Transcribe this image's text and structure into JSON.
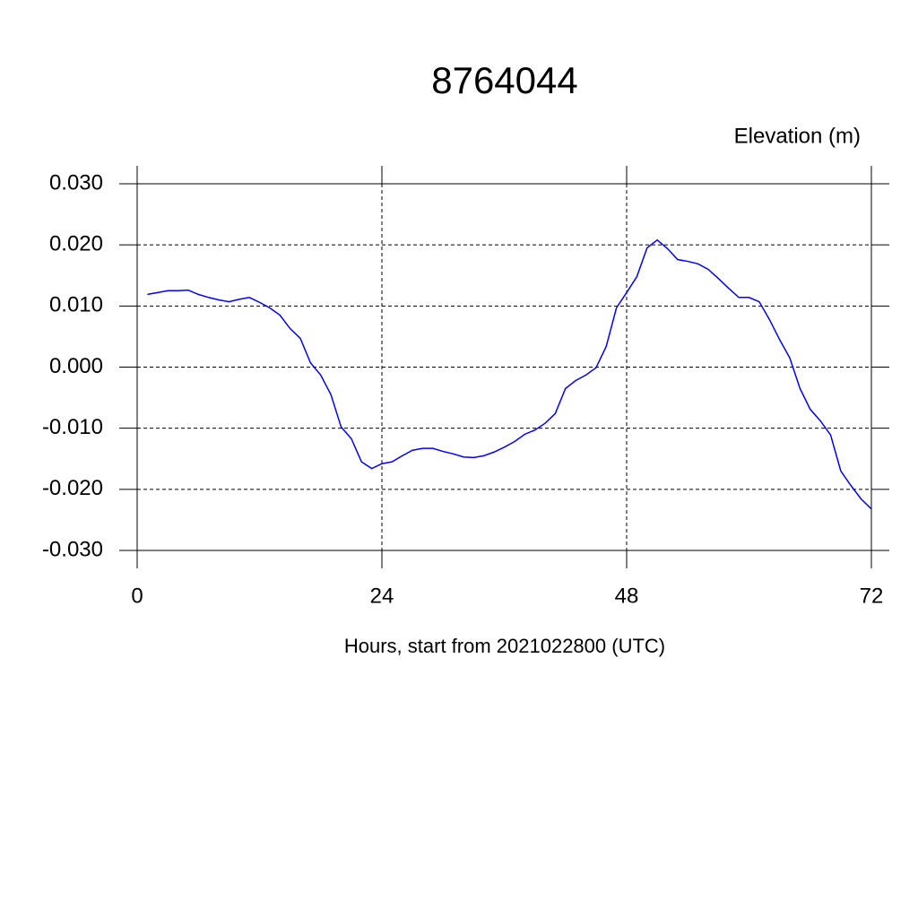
{
  "chart_data": {
    "type": "line",
    "title": "8764044",
    "subtitle": "Elevation (m)",
    "x_label": "Hours, start from 2021022800 (UTC)",
    "x": [
      1,
      2,
      3,
      4,
      5,
      6,
      7,
      8,
      9,
      10,
      11,
      12,
      13,
      14,
      15,
      16,
      17,
      18,
      19,
      20,
      21,
      22,
      23,
      24,
      25,
      26,
      27,
      28,
      29,
      30,
      31,
      32,
      33,
      34,
      35,
      36,
      37,
      38,
      39,
      40,
      41,
      42,
      43,
      44,
      45,
      46,
      47,
      48,
      49,
      50,
      51,
      52,
      53,
      54,
      55,
      56,
      57,
      58,
      59,
      60,
      61,
      62,
      63,
      64,
      65,
      66,
      67,
      68,
      69,
      70,
      71,
      72
    ],
    "series": [
      {
        "name": "Elevation",
        "color": "#0000ff",
        "values": [
          0.0119,
          0.0122,
          0.0125,
          0.0125,
          0.0126,
          0.0119,
          0.0114,
          0.011,
          0.0107,
          0.0111,
          0.0114,
          0.0106,
          0.0097,
          0.0085,
          0.0063,
          0.0047,
          0.0007,
          -0.0013,
          -0.0045,
          -0.0098,
          -0.0117,
          -0.0155,
          -0.0166,
          -0.0158,
          -0.0155,
          -0.0145,
          -0.0136,
          -0.0133,
          -0.0133,
          -0.0138,
          -0.0142,
          -0.0147,
          -0.0148,
          -0.0145,
          -0.0139,
          -0.0131,
          -0.0122,
          -0.011,
          -0.0103,
          -0.0092,
          -0.0076,
          -0.0035,
          -0.0022,
          -0.0013,
          -0.0001,
          0.0034,
          0.0097,
          0.0122,
          0.0148,
          0.0195,
          0.0208,
          0.0194,
          0.0176,
          0.0173,
          0.0169,
          0.016,
          0.0145,
          0.0129,
          0.0114,
          0.0114,
          0.0107,
          0.0078,
          0.0045,
          0.0015,
          -0.0035,
          -0.0069,
          -0.0088,
          -0.0111,
          -0.017,
          -0.0194,
          -0.0216,
          -0.0232
        ]
      }
    ],
    "xlim": [
      0,
      72
    ],
    "xticks": [
      0,
      24,
      48,
      72
    ],
    "ylim": [
      -0.03,
      0.03
    ],
    "yticks": [
      {
        "value": -0.03,
        "label": "-0.030"
      },
      {
        "value": -0.02,
        "label": "-0.020"
      },
      {
        "value": -0.01,
        "label": "-0.010"
      },
      {
        "value": 0,
        "label": "0.000"
      },
      {
        "value": 0.01,
        "label": "0.010"
      },
      {
        "value": 0.02,
        "label": "0.020"
      },
      {
        "value": 0.03,
        "label": "0.030"
      }
    ],
    "grid": true
  }
}
